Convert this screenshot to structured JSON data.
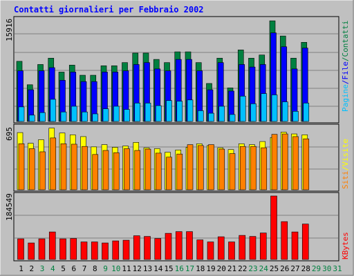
{
  "chart_data": [
    {
      "type": "bar",
      "title": "Contatti giornalieri per Febbraio 2002",
      "ymax_label": "15916",
      "ylim": [
        0,
        15916
      ],
      "legend": {
        "pages": "Pagine",
        "files": "File",
        "hits": "Contatti",
        "sep": "/"
      },
      "categories": [
        "1",
        "2",
        "3",
        "4",
        "5",
        "6",
        "7",
        "8",
        "9",
        "10",
        "11",
        "12",
        "13",
        "14",
        "15",
        "16",
        "17",
        "18",
        "19",
        "20",
        "21",
        "22",
        "23",
        "24",
        "25",
        "26",
        "27",
        "28",
        "29",
        "30",
        "31"
      ],
      "day_colors": [
        "#000000",
        "#000000",
        "#008040",
        "#008040",
        "#000000",
        "#000000",
        "#000000",
        "#000000",
        "#008040",
        "#008040",
        "#000000",
        "#000000",
        "#000000",
        "#000000",
        "#000000",
        "#008040",
        "#008040",
        "#000000",
        "#000000",
        "#000000",
        "#000000",
        "#000000",
        "#008040",
        "#008040",
        "#000000",
        "#000000",
        "#000000",
        "#000000",
        "#008040",
        "#008040",
        "#008040"
      ],
      "series": [
        {
          "name": "Contatti",
          "color": "#008040",
          "values": [
            9500,
            5800,
            9000,
            10000,
            7800,
            8900,
            7300,
            7300,
            8800,
            8800,
            9300,
            10800,
            10800,
            9800,
            9300,
            11000,
            11000,
            9300,
            6000,
            10000,
            5300,
            11300,
            10000,
            10500,
            15900,
            13500,
            10000,
            12500,
            0,
            0,
            0
          ]
        },
        {
          "name": "File",
          "color": "#0000ff",
          "values": [
            8000,
            5000,
            8000,
            8500,
            6500,
            7800,
            6300,
            6300,
            7800,
            7800,
            8000,
            9000,
            9300,
            8300,
            8000,
            9800,
            9800,
            8000,
            5000,
            9300,
            4800,
            9000,
            8600,
            9000,
            14000,
            11800,
            8300,
            11600,
            0,
            0,
            0
          ]
        },
        {
          "name": "Pagine",
          "color": "#00c0ff",
          "values": [
            2300,
            1000,
            1400,
            3500,
            1500,
            2400,
            1500,
            1200,
            2000,
            2400,
            1900,
            2900,
            2900,
            2500,
            3300,
            3200,
            3400,
            1700,
            1300,
            2400,
            1100,
            4000,
            2800,
            4400,
            4200,
            3100,
            1600,
            2900,
            0,
            0,
            0
          ]
        }
      ]
    },
    {
      "type": "bar",
      "ymax_label": "695",
      "ylim": [
        0,
        695
      ],
      "legend": {
        "visits": "Visite",
        "sites": "Siti",
        "sep": "/"
      },
      "series": [
        {
          "name": "Visite",
          "color": "#ffff00",
          "values": [
            640,
            520,
            560,
            690,
            635,
            615,
            595,
            480,
            505,
            475,
            490,
            530,
            470,
            460,
            420,
            445,
            475,
            515,
            495,
            470,
            450,
            515,
            505,
            540,
            585,
            645,
            625,
            615,
            0,
            0,
            0
          ]
        },
        {
          "name": "Siti",
          "color": "#ff8000",
          "values": [
            515,
            460,
            425,
            580,
            515,
            510,
            485,
            395,
            440,
            415,
            460,
            440,
            455,
            410,
            365,
            400,
            505,
            495,
            505,
            455,
            405,
            485,
            485,
            470,
            620,
            625,
            595,
            570,
            0,
            0,
            0
          ]
        }
      ]
    },
    {
      "type": "bar",
      "ymax_label": "184549",
      "ylim": [
        0,
        184549
      ],
      "legend": {
        "kbytes": "KBytes"
      },
      "series": [
        {
          "name": "KBytes",
          "color": "#ff0000",
          "values": [
            60000,
            48000,
            60000,
            80000,
            60000,
            61000,
            51000,
            51000,
            48000,
            54000,
            56000,
            69000,
            67000,
            61000,
            76000,
            81000,
            81000,
            57000,
            51000,
            66000,
            51000,
            70000,
            67000,
            77000,
            184549,
            110000,
            80000,
            103000,
            0,
            0,
            0
          ]
        }
      ]
    }
  ]
}
